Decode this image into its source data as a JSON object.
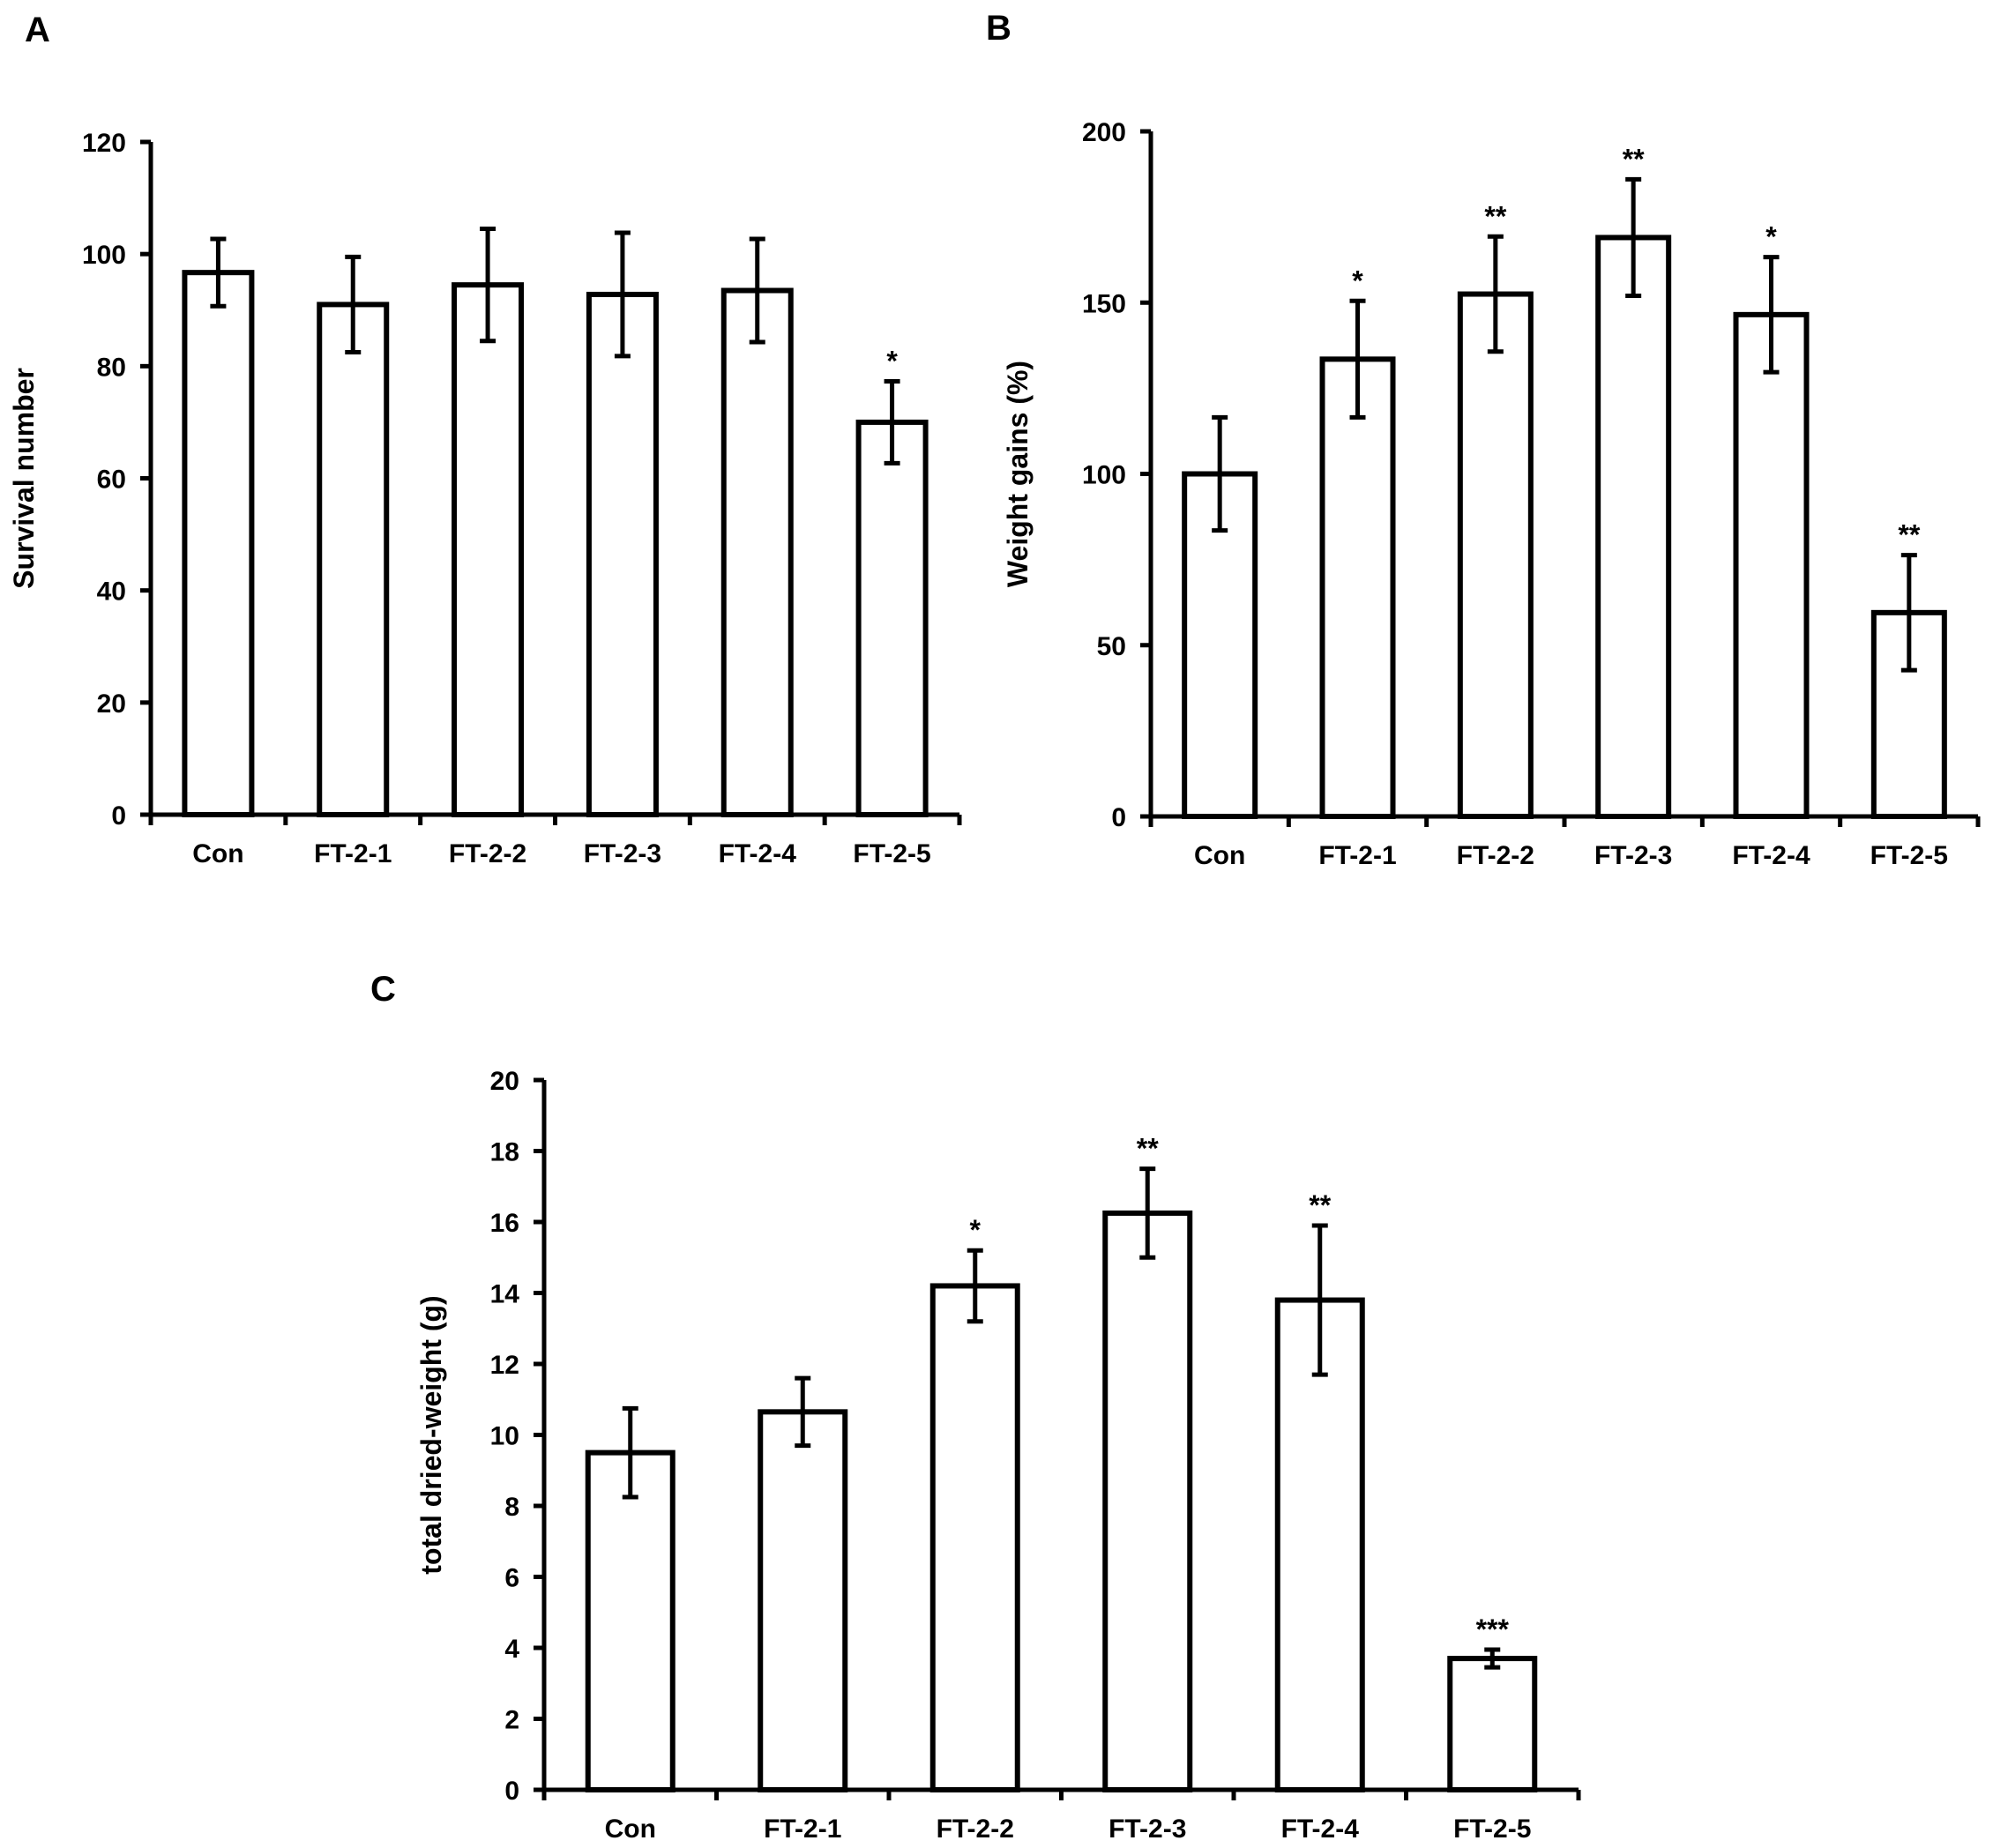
{
  "colors": {
    "bar_fill": "#ffffff",
    "bar_stroke": "#000000",
    "axis": "#000000",
    "background": "#ffffff"
  },
  "chart_data": [
    {
      "id": "A",
      "panel_label": "A",
      "type": "bar",
      "title": "",
      "xlabel": "",
      "ylabel": "Survival number",
      "ylim": [
        0,
        120
      ],
      "yticks": [
        0,
        20,
        40,
        60,
        80,
        100,
        120
      ],
      "categories": [
        "Con",
        "FT-2-1",
        "FT-2-2",
        "FT-2-3",
        "FT-2-4",
        "FT-2-5"
      ],
      "values": [
        96.7,
        91.0,
        94.5,
        92.8,
        93.5,
        70.0
      ],
      "errors": [
        6.0,
        8.5,
        10.0,
        11.0,
        9.2,
        7.3
      ],
      "significance": [
        "",
        "",
        "",
        "",
        "",
        "*"
      ],
      "grid": false
    },
    {
      "id": "B",
      "panel_label": "B",
      "type": "bar",
      "title": "",
      "xlabel": "",
      "ylabel": "Weight gains (%)",
      "ylim": [
        0,
        200
      ],
      "yticks": [
        0,
        50,
        100,
        150,
        200
      ],
      "categories": [
        "Con",
        "FT-2-1",
        "FT-2-2",
        "FT-2-3",
        "FT-2-4",
        "FT-2-5"
      ],
      "values": [
        100.0,
        133.5,
        152.5,
        169.0,
        146.5,
        59.5
      ],
      "errors": [
        16.5,
        17.0,
        16.8,
        17.0,
        16.8,
        16.8
      ],
      "significance": [
        "",
        "*",
        "**",
        "**",
        "*",
        "**"
      ],
      "grid": false
    },
    {
      "id": "C",
      "panel_label": "C",
      "type": "bar",
      "title": "",
      "xlabel": "",
      "ylabel": "total dried-weight (g)",
      "ylim": [
        0,
        20
      ],
      "yticks": [
        0,
        2,
        4,
        6,
        8,
        10,
        12,
        14,
        16,
        18,
        20
      ],
      "categories": [
        "Con",
        "FT-2-1",
        "FT-2-2",
        "FT-2-3",
        "FT-2-4",
        "FT-2-5"
      ],
      "values": [
        9.5,
        10.65,
        14.2,
        16.25,
        13.8,
        3.7
      ],
      "errors": [
        1.25,
        0.95,
        1.0,
        1.25,
        2.1,
        0.25
      ],
      "significance": [
        "",
        "",
        "*",
        "**",
        "**",
        "***"
      ],
      "grid": false
    }
  ]
}
